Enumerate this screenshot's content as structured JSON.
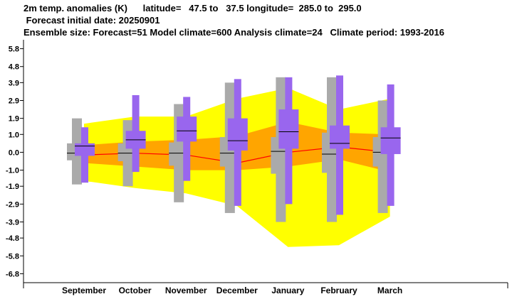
{
  "header": {
    "line1": "2m temp. anomalies (K)      latitude=   47.5 to   37.5 longitude=  285.0 to  295.0",
    "line2": " Forecast initial date: 20250901",
    "line3": "Ensemble size: Forecast=51 Model climate=600 Analysis climate=24   Climate period: 1993-2016"
  },
  "chart_data": {
    "type": "box-and-whisker climate plume",
    "title": "2m temp. anomalies (K)",
    "categories": [
      "September",
      "October",
      "November",
      "December",
      "January",
      "February",
      "March"
    ],
    "y_ticks": [
      "5.8",
      "4.8",
      "3.9",
      "2.9",
      "1.9",
      "1.0",
      "0.0",
      "-1.0",
      "-1.9",
      "-2.9",
      "-3.9",
      "-4.8",
      "-5.8",
      "-6.8"
    ],
    "ylim": [
      -7.3,
      6.3
    ],
    "colors": {
      "outer_band": "#ffff00",
      "inner_band": "#ffa500",
      "median_line": "#ff0000",
      "forecast_box": "#9966ee",
      "climate_box": "#aaaaaa"
    },
    "outer_band": {
      "upper": [
        1.6,
        2.0,
        2.0,
        3.0,
        3.6,
        2.4,
        3.0
      ],
      "lower": [
        -1.6,
        -2.0,
        -2.3,
        -3.0,
        -5.3,
        -5.2,
        -3.6
      ]
    },
    "inner_band": {
      "upper": [
        0.4,
        0.6,
        0.7,
        0.9,
        1.7,
        1.1,
        1.0
      ],
      "lower": [
        -0.6,
        -0.8,
        -1.0,
        -1.0,
        -0.8,
        -0.4,
        -1.1
      ]
    },
    "median_line": [
      -0.15,
      -0.05,
      -0.15,
      -0.6,
      0.0,
      0.3,
      0.0
    ],
    "forecast": [
      {
        "month": "September",
        "min": -1.7,
        "p25": -0.2,
        "median": 0.35,
        "p75": 0.5,
        "max": 1.4
      },
      {
        "month": "October",
        "min": -1.1,
        "p25": 0.2,
        "median": 0.7,
        "p75": 1.2,
        "max": 3.2
      },
      {
        "month": "November",
        "min": -1.6,
        "p25": 0.6,
        "median": 1.2,
        "p75": 2.0,
        "max": 3.1
      },
      {
        "month": "December",
        "min": -3.0,
        "p25": 0.1,
        "median": 0.65,
        "p75": 1.9,
        "max": 4.1
      },
      {
        "month": "January",
        "min": -2.9,
        "p25": 0.2,
        "median": 1.15,
        "p75": 2.4,
        "max": 4.2
      },
      {
        "month": "February",
        "min": -3.5,
        "p25": 0.2,
        "median": 0.5,
        "p75": 1.5,
        "max": 4.3
      },
      {
        "month": "March",
        "min": -3.0,
        "p25": -0.1,
        "median": 0.8,
        "p75": 1.4,
        "max": 3.8
      }
    ],
    "climate": [
      {
        "month": "September",
        "min": -1.8,
        "p25": -0.45,
        "median": -0.05,
        "p75": 0.5,
        "max": 1.9
      },
      {
        "month": "October",
        "min": -1.9,
        "p25": -0.5,
        "median": -0.05,
        "p75": 0.5,
        "max": 1.8
      },
      {
        "month": "November",
        "min": -2.8,
        "p25": -0.75,
        "median": -0.05,
        "p75": 0.55,
        "max": 2.7
      },
      {
        "month": "December",
        "min": -3.4,
        "p25": -0.8,
        "median": -0.05,
        "p75": 0.85,
        "max": 3.9
      },
      {
        "month": "January",
        "min": -3.9,
        "p25": -1.2,
        "median": 0.05,
        "p75": 0.85,
        "max": 4.2
      },
      {
        "month": "February",
        "min": -3.9,
        "p25": -1.15,
        "median": -0.1,
        "p75": 1.1,
        "max": 4.2
      },
      {
        "month": "March",
        "min": -3.4,
        "p25": -0.8,
        "median": 0.0,
        "p75": 0.85,
        "max": 2.9
      }
    ]
  }
}
